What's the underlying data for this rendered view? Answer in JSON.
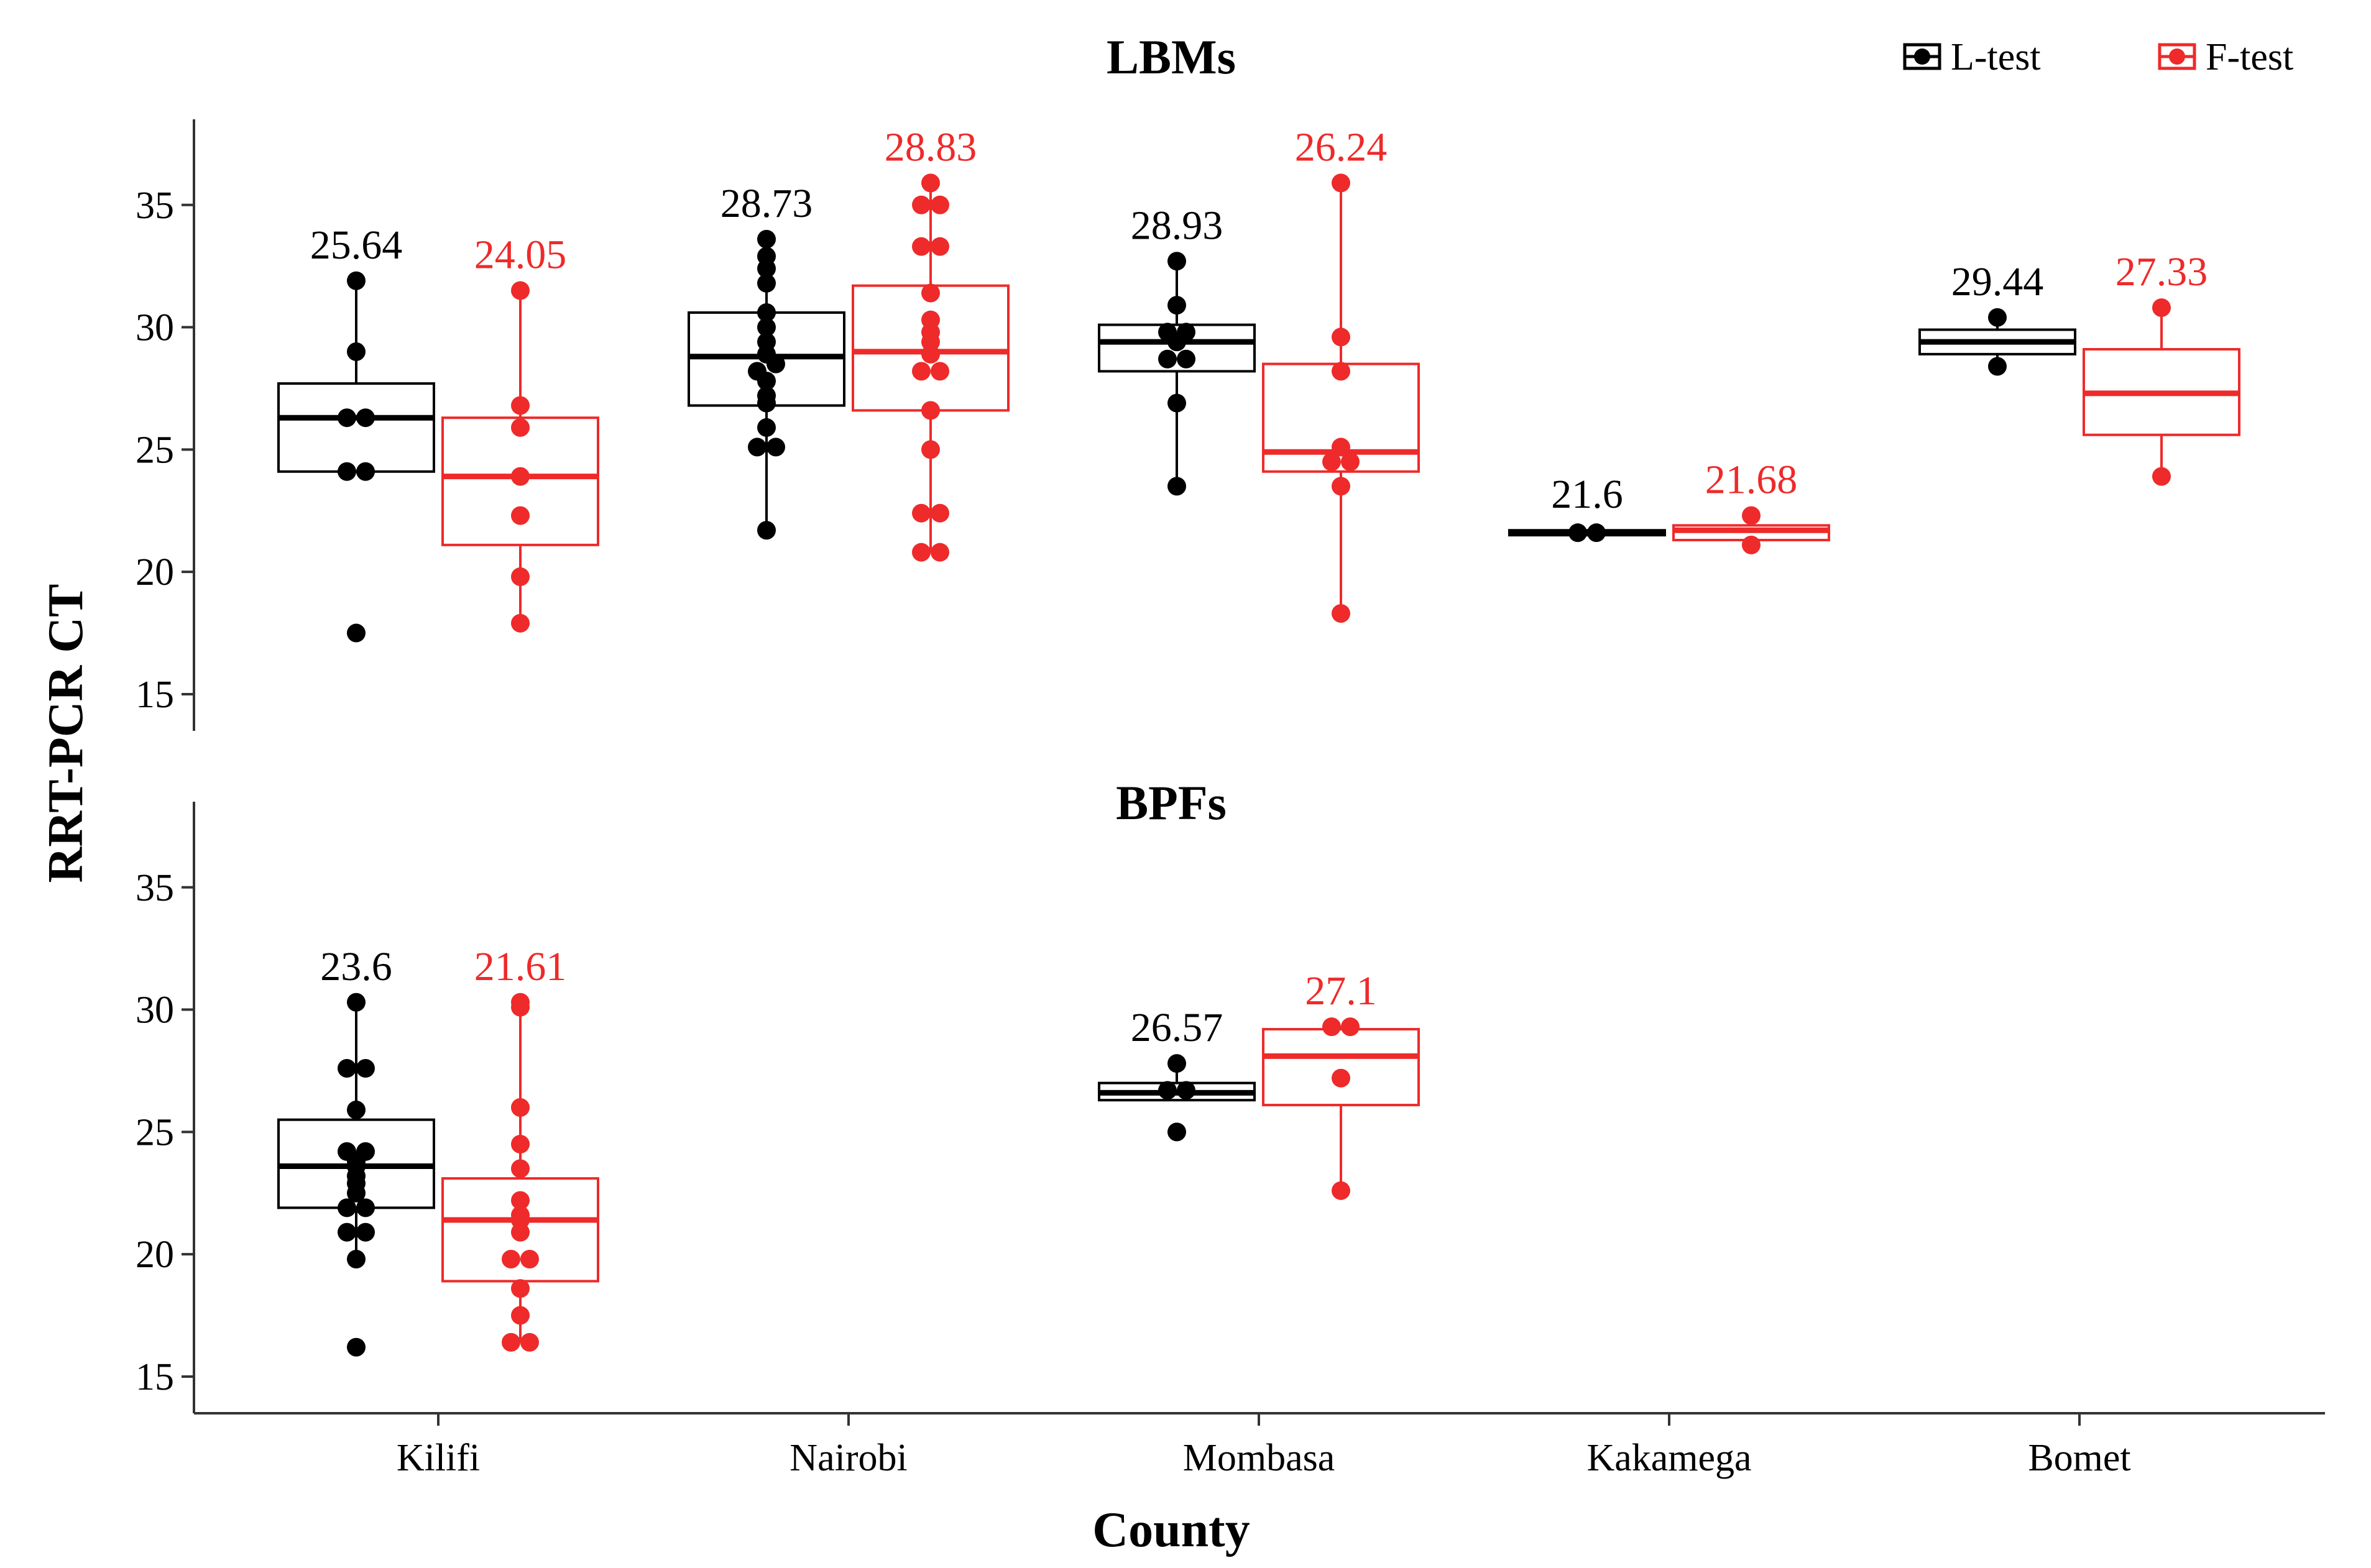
{
  "chart_data": {
    "type": "box",
    "xlabel": "County",
    "ylabel": "RRT-PCR CT",
    "categories": [
      "Kilifi",
      "Nairobi",
      "Mombasa",
      "Kakamega",
      "Bomet"
    ],
    "ylim": [
      13.5,
      38.5
    ],
    "yticks": [
      15,
      20,
      25,
      30,
      35
    ],
    "legend_position": "top-right",
    "legend": [
      {
        "name": "L-test",
        "color": "#000000"
      },
      {
        "name": "F-test",
        "color": "#ee2a2a"
      }
    ],
    "panels": [
      {
        "title": "LBMs",
        "groups": [
          {
            "county": "Kilifi",
            "series": "L-test",
            "label": "25.64",
            "box": {
              "q1": 24.1,
              "median": 26.3,
              "q3": 27.7,
              "whisker_low": 24.1,
              "whisker_high": 31.9
            },
            "points": [
              17.5,
              24.1,
              24.1,
              26.3,
              26.3,
              29.0,
              31.9
            ]
          },
          {
            "county": "Kilifi",
            "series": "F-test",
            "label": "24.05",
            "box": {
              "q1": 21.1,
              "median": 23.9,
              "q3": 26.3,
              "whisker_low": 17.9,
              "whisker_high": 31.5
            },
            "points": [
              17.9,
              19.8,
              22.3,
              23.9,
              25.9,
              26.8,
              31.5
            ]
          },
          {
            "county": "Nairobi",
            "series": "L-test",
            "label": "28.73",
            "box": {
              "q1": 26.8,
              "median": 28.8,
              "q3": 30.6,
              "whisker_low": 21.7,
              "whisker_high": 33.6
            },
            "points": [
              21.7,
              25.1,
              25.1,
              25.9,
              26.9,
              27.2,
              27.8,
              28.2,
              28.5,
              28.9,
              29.4,
              30.0,
              30.6,
              31.8,
              32.4,
              32.9,
              33.6
            ]
          },
          {
            "county": "Nairobi",
            "series": "F-test",
            "label": "28.83",
            "box": {
              "q1": 26.6,
              "median": 29.0,
              "q3": 31.7,
              "whisker_low": 20.8,
              "whisker_high": 35.9
            },
            "points": [
              20.8,
              20.8,
              22.4,
              22.4,
              25.0,
              26.6,
              28.2,
              28.2,
              28.9,
              29.4,
              29.8,
              30.3,
              31.4,
              33.3,
              33.3,
              35.0,
              35.0,
              35.9
            ]
          },
          {
            "county": "Mombasa",
            "series": "L-test",
            "label": "28.93",
            "box": {
              "q1": 28.2,
              "median": 29.4,
              "q3": 30.1,
              "whisker_low": 23.5,
              "whisker_high": 32.7
            },
            "points": [
              23.5,
              26.9,
              28.7,
              28.7,
              29.4,
              29.8,
              29.8,
              30.9,
              32.7
            ]
          },
          {
            "county": "Mombasa",
            "series": "F-test",
            "label": "26.24",
            "box": {
              "q1": 24.1,
              "median": 24.9,
              "q3": 28.5,
              "whisker_low": 18.3,
              "whisker_high": 35.9
            },
            "points": [
              18.3,
              23.5,
              24.5,
              24.5,
              25.1,
              28.2,
              29.6,
              35.9
            ]
          },
          {
            "county": "Kakamega",
            "series": "L-test",
            "label": "21.6",
            "box": {
              "q1": 21.5,
              "median": 21.6,
              "q3": 21.7,
              "whisker_low": 21.5,
              "whisker_high": 21.7
            },
            "points": [
              21.6,
              21.6
            ]
          },
          {
            "county": "Kakamega",
            "series": "F-test",
            "label": "21.68",
            "box": {
              "q1": 21.3,
              "median": 21.7,
              "q3": 21.9,
              "whisker_low": 21.1,
              "whisker_high": 22.3
            },
            "points": [
              21.1,
              22.3
            ]
          },
          {
            "county": "Bomet",
            "series": "L-test",
            "label": "29.44",
            "box": {
              "q1": 28.9,
              "median": 29.4,
              "q3": 29.9,
              "whisker_low": 28.4,
              "whisker_high": 30.4
            },
            "points": [
              28.4,
              30.4
            ]
          },
          {
            "county": "Bomet",
            "series": "F-test",
            "label": "27.33",
            "box": {
              "q1": 25.6,
              "median": 27.3,
              "q3": 29.1,
              "whisker_low": 23.9,
              "whisker_high": 30.8
            },
            "points": [
              23.9,
              30.8
            ]
          }
        ]
      },
      {
        "title": "BPFs",
        "groups": [
          {
            "county": "Kilifi",
            "series": "L-test",
            "label": "23.6",
            "box": {
              "q1": 21.9,
              "median": 23.6,
              "q3": 25.5,
              "whisker_low": 19.8,
              "whisker_high": 30.3
            },
            "points": [
              16.2,
              19.8,
              20.9,
              20.9,
              21.9,
              21.9,
              22.5,
              22.9,
              23.2,
              23.6,
              23.8,
              24.2,
              24.2,
              25.9,
              27.6,
              27.6,
              30.3
            ]
          },
          {
            "county": "Kilifi",
            "series": "F-test",
            "label": "21.61",
            "box": {
              "q1": 18.9,
              "median": 21.4,
              "q3": 23.1,
              "whisker_low": 16.4,
              "whisker_high": 30.3
            },
            "points": [
              16.4,
              16.4,
              17.5,
              18.6,
              19.8,
              19.8,
              20.9,
              21.4,
              21.6,
              22.2,
              23.5,
              24.5,
              26.0,
              30.1,
              30.3
            ]
          },
          {
            "county": "Mombasa",
            "series": "L-test",
            "label": "26.57",
            "box": {
              "q1": 26.3,
              "median": 26.6,
              "q3": 27.0,
              "whisker_low": 26.3,
              "whisker_high": 27.8
            },
            "points": [
              25.0,
              26.7,
              26.7,
              27.8
            ]
          },
          {
            "county": "Mombasa",
            "series": "F-test",
            "label": "27.1",
            "box": {
              "q1": 26.1,
              "median": 28.1,
              "q3": 29.2,
              "whisker_low": 22.6,
              "whisker_high": 29.3
            },
            "points": [
              22.6,
              27.2,
              29.3,
              29.3
            ]
          }
        ]
      }
    ]
  },
  "colors": {
    "l_test": "#000000",
    "f_test": "#ee2a2a",
    "axis": "#333333"
  }
}
